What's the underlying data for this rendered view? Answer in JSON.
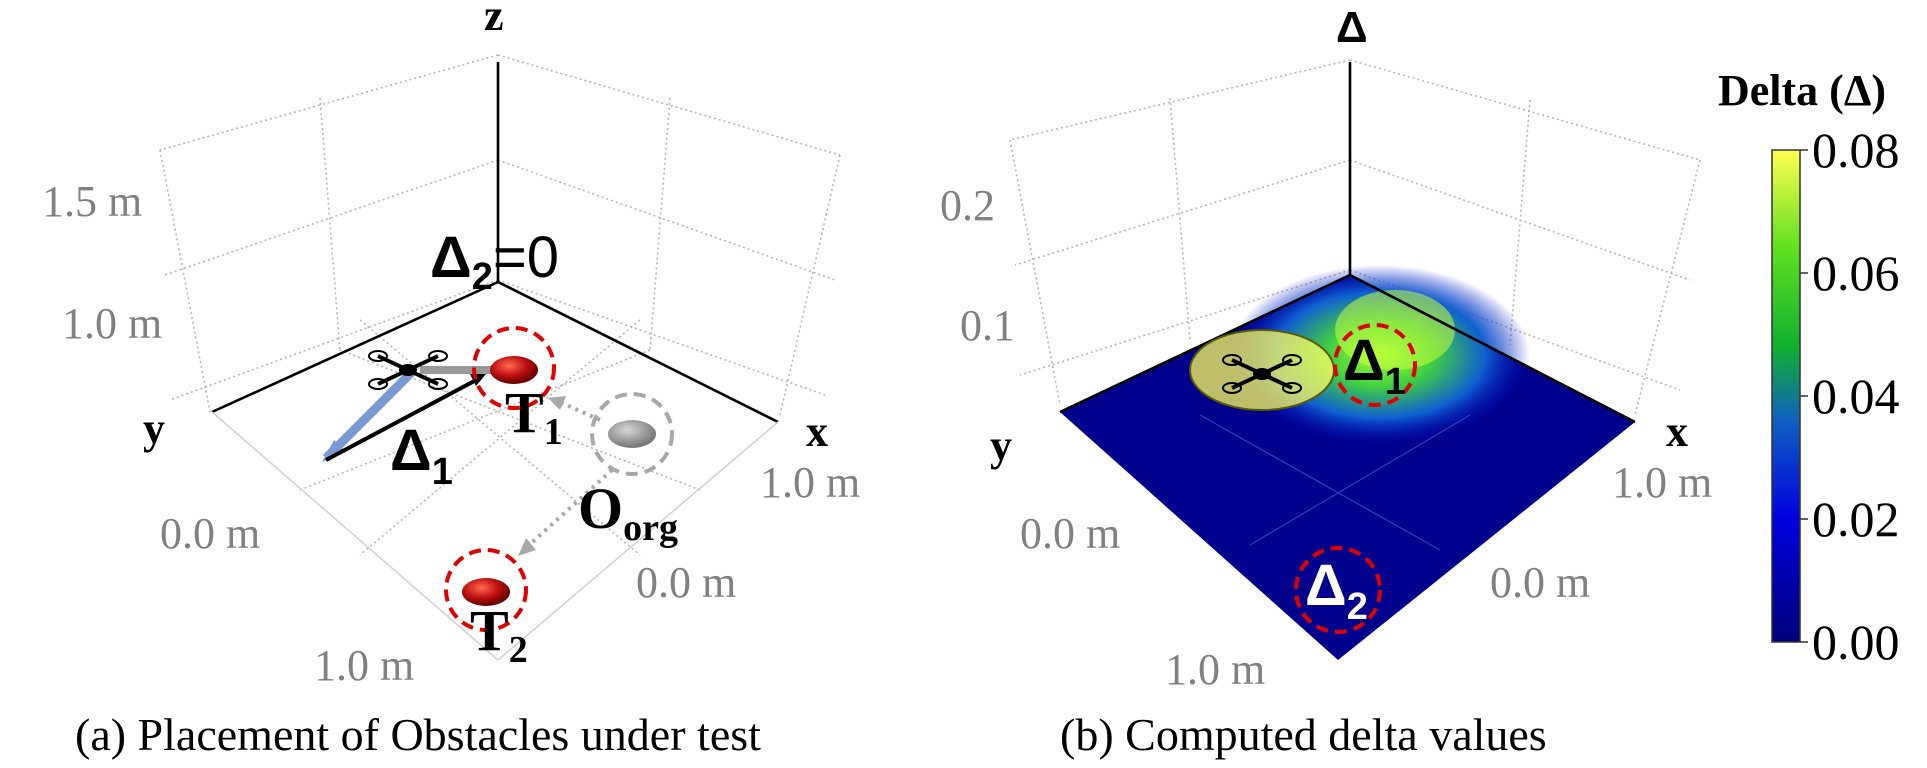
{
  "panel_a": {
    "axis_labels": {
      "x": "x",
      "y": "y",
      "z": "z"
    },
    "ticks_z": [
      "1.5 m",
      "1.0 m"
    ],
    "ticks_x": [
      "1.0 m",
      "0.0 m"
    ],
    "ticks_y": [
      "0.0 m",
      "1.0 m"
    ],
    "delta2_label": {
      "sym": "Δ",
      "sub": "2",
      "rest": "=0"
    },
    "delta1_label": {
      "sym": "Δ",
      "sub": "1"
    },
    "t1_label": {
      "sym": "T",
      "sub": "1"
    },
    "t2_label": {
      "sym": "T",
      "sub": "2"
    },
    "org_label": {
      "sym": "O",
      "sub": "org"
    },
    "caption": "(a) Placement of Obstacles under test"
  },
  "panel_b": {
    "axis_labels": {
      "x": "x",
      "y": "y",
      "z": "Δ"
    },
    "ticks_z": [
      "0.2",
      "0.1"
    ],
    "ticks_x": [
      "1.0 m",
      "0.0 m"
    ],
    "ticks_y": [
      "0.0 m",
      "1.0 m"
    ],
    "delta1_label": {
      "sym": "Δ",
      "sub": "1"
    },
    "delta2_label": {
      "sym": "Δ",
      "sub": "2"
    },
    "caption": "(b) Computed delta values"
  },
  "colorbar": {
    "title": "Delta (Δ)",
    "ticks": [
      "0.08",
      "0.06",
      "0.04",
      "0.02",
      "0.00"
    ],
    "colors": [
      "#00007a",
      "#0000ff",
      "#00c000",
      "#ffff40"
    ]
  }
}
